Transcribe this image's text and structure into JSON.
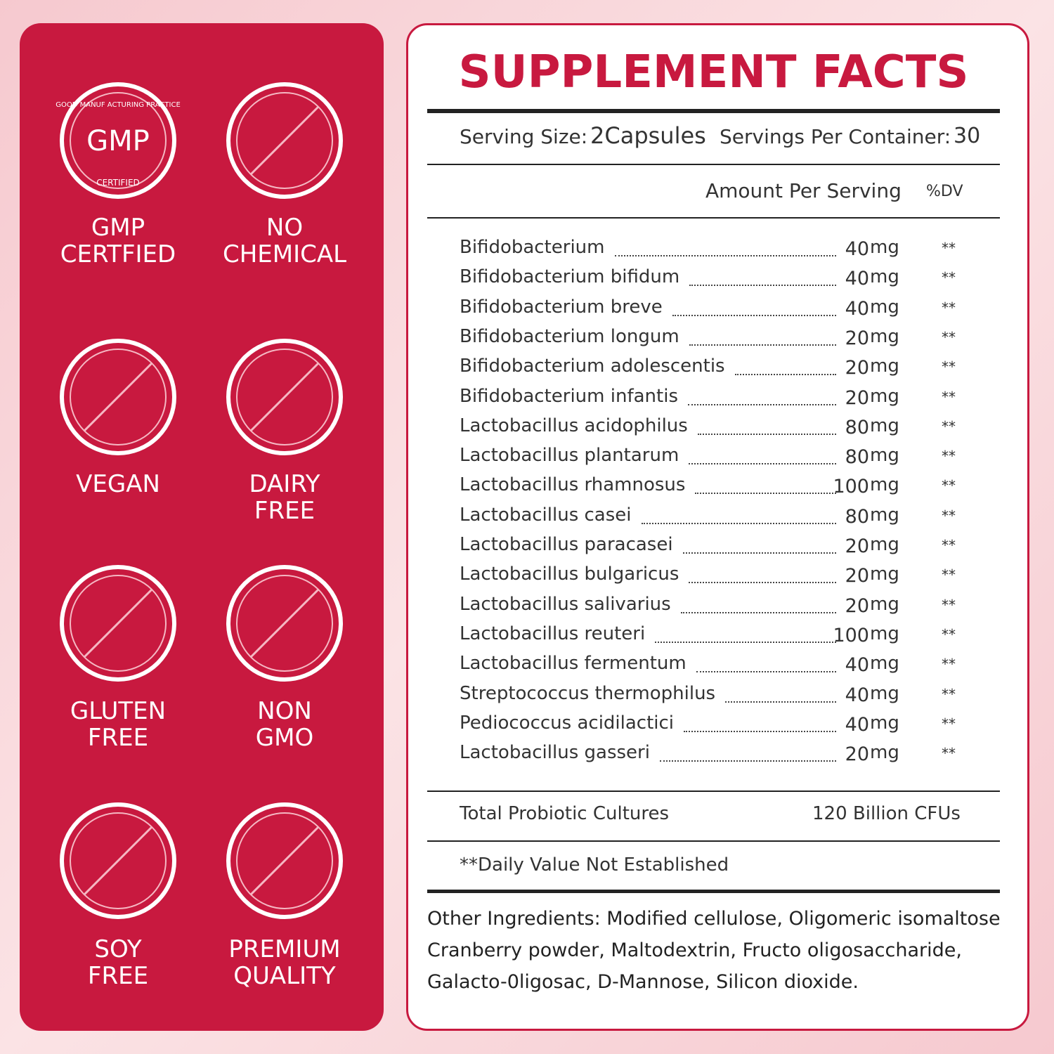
{
  "badges": [
    {
      "icon_text": [
        "GMP",
        "GOOD MANUF ACTURING PRACTICE",
        "CERTIFIED"
      ],
      "label": [
        "GMP",
        "CERTFIED"
      ]
    },
    {
      "label": [
        "NO",
        "CHEMICAL"
      ]
    },
    {
      "label": [
        "VEGAN"
      ]
    },
    {
      "label": [
        "DAIRY",
        "FREE"
      ]
    },
    {
      "label": [
        "GLUTEN",
        "FREE"
      ]
    },
    {
      "label": [
        "NON",
        "GMO"
      ]
    },
    {
      "label": [
        "SOY",
        "FREE"
      ]
    },
    {
      "label": [
        "PREMIUM",
        "QUALITY"
      ]
    }
  ],
  "facts": {
    "title": "SUPPLEMENT FACTS",
    "serving_size_label": "Serving Size:",
    "serving_size": "2Capsules",
    "servings_label": "Servings Per Container:",
    "servings": 30,
    "amount_header": "Amount Per Serving",
    "dv_header": "%DV",
    "rows": [
      {
        "name": "Bifidobacterium",
        "amount": 40,
        "unit": "mg",
        "dv": "**"
      },
      {
        "name": "Bifidobacterium bifidum",
        "amount": 40,
        "unit": "mg",
        "dv": "**"
      },
      {
        "name": "Bifidobacterium breve",
        "amount": 40,
        "unit": "mg",
        "dv": "**"
      },
      {
        "name": "Bifidobacterium longum",
        "amount": 20,
        "unit": "mg",
        "dv": "**"
      },
      {
        "name": "Bifidobacterium adolescentis",
        "amount": 20,
        "unit": "mg",
        "dv": "**"
      },
      {
        "name": "Bifidobacterium infantis",
        "amount": 20,
        "unit": "mg",
        "dv": "**"
      },
      {
        "name": "Lactobacillus acidophilus",
        "amount": 80,
        "unit": "mg",
        "dv": "**"
      },
      {
        "name": "Lactobacillus plantarum",
        "amount": 80,
        "unit": "mg",
        "dv": "**"
      },
      {
        "name": "Lactobacillus rhamnosus",
        "amount": 100,
        "unit": "mg",
        "dv": "**"
      },
      {
        "name": "Lactobacillus casei",
        "amount": 80,
        "unit": "mg",
        "dv": "**"
      },
      {
        "name": "Lactobacillus paracasei",
        "amount": 20,
        "unit": "mg",
        "dv": "**"
      },
      {
        "name": "Lactobacillus bulgaricus",
        "amount": 20,
        "unit": "mg",
        "dv": "**"
      },
      {
        "name": "Lactobacillus salivarius",
        "amount": 20,
        "unit": "mg",
        "dv": "**"
      },
      {
        "name": "Lactobacillus reuteri",
        "amount": 100,
        "unit": "mg",
        "dv": "**"
      },
      {
        "name": "Lactobacillus fermentum",
        "amount": 40,
        "unit": "mg",
        "dv": "**"
      },
      {
        "name": "Streptococcus thermophilus",
        "amount": 40,
        "unit": "mg",
        "dv": "**"
      },
      {
        "name": "Pediococcus acidilactici",
        "amount": 40,
        "unit": "mg",
        "dv": "**"
      },
      {
        "name": "Lactobacillus gasseri",
        "amount": 20,
        "unit": "mg",
        "dv": "**"
      }
    ],
    "total_label": "Total Probiotic Cultures",
    "total_value": "120 Billion CFUs",
    "footnote": "**Daily Value Not Established",
    "other_ingredients": [
      "Other Ingredients: Modified cellulose, Oligomeric isomaltose",
      "Cranberry powder, Maltodextrin, Fructo oligosaccharide,",
      "Galacto-0ligosac, D-Mannose, Silicon dioxide."
    ]
  }
}
